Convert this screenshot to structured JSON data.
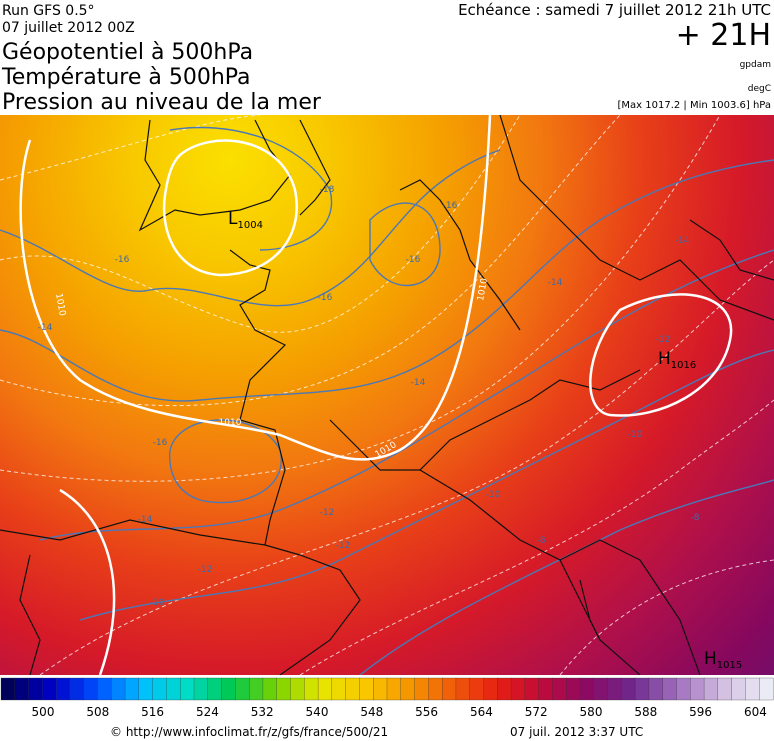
{
  "header": {
    "run": "Run GFS 0.5°",
    "date": "07 juillet 2012 00Z",
    "titles": [
      "Géopotentiel à 500hPa",
      "Température à 500hPa",
      "Pression au niveau de la mer"
    ],
    "echeance": "Echéance : samedi 7 juillet 2012 21h UTC",
    "lead": "+ 21H",
    "units": [
      "gpdam",
      "degC"
    ],
    "range": "[Max 1017.2 | Min 1003.6] hPa"
  },
  "map": {
    "pressure_centers": [
      {
        "letter": "L",
        "value": "1004"
      },
      {
        "letter": "H",
        "value": "1016"
      },
      {
        "letter": "H",
        "value": "1015"
      }
    ],
    "isobar_labels": [
      "1010",
      "1010",
      "1010",
      "1010"
    ],
    "temperature_labels": [
      "-16",
      "-18",
      "-16",
      "-16",
      "-16",
      "-14",
      "-14",
      "-14",
      "-14",
      "-12",
      "-16",
      "-14",
      "-12",
      "-12",
      "-10",
      "-10",
      "-8",
      "-12",
      "-10",
      "-8"
    ]
  },
  "colorbar": {
    "labels": [
      "500",
      "508",
      "516",
      "524",
      "532",
      "540",
      "548",
      "556",
      "564",
      "572",
      "580",
      "588",
      "596",
      "604"
    ]
  },
  "footer": {
    "url": "© http://www.infoclimat.fr/z/gfs/france/500/21",
    "generated": "07 juil. 2012  3:37 UTC"
  }
}
